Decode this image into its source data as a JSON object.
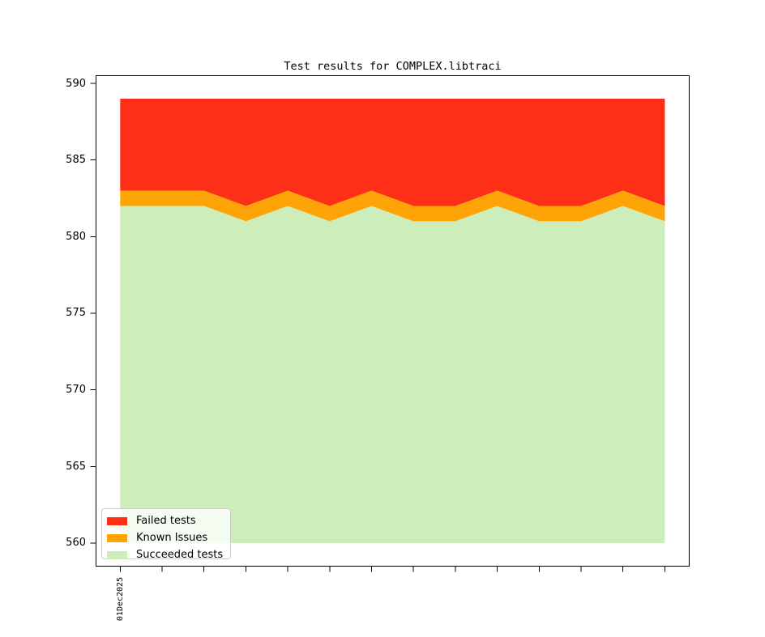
{
  "chart_data": {
    "type": "area",
    "stacked": true,
    "title": "Test results for COMPLEX.libtraci",
    "x_tick_labels": [
      "01Dec2025",
      "",
      "",
      "",
      "",
      "",
      "",
      "",
      "",
      "",
      "",
      "",
      "",
      ""
    ],
    "y_ticks": [
      560,
      565,
      570,
      575,
      580,
      585,
      590
    ],
    "ylim": [
      558.5,
      590.5
    ],
    "baseline_value": 560,
    "grid": false,
    "axis_color": "#000000",
    "series": [
      {
        "name": "Succeeded tests",
        "color": "#cdeebb",
        "values": [
          582,
          582,
          582,
          581,
          582,
          581,
          582,
          581,
          581,
          582,
          581,
          581,
          582,
          581
        ]
      },
      {
        "name": "Known Issues",
        "color": "#ffa406",
        "values": [
          1,
          1,
          1,
          1,
          1,
          1,
          1,
          1,
          1,
          1,
          1,
          1,
          1,
          1
        ]
      },
      {
        "name": "Failed tests",
        "color": "#fe2f17",
        "values": [
          6,
          6,
          6,
          7,
          6,
          7,
          6,
          7,
          7,
          6,
          7,
          7,
          6,
          7
        ]
      }
    ],
    "totals_per_point": [
      589,
      589,
      589,
      589,
      589,
      589,
      589,
      589,
      589,
      589,
      589,
      589,
      589,
      589
    ],
    "legend": {
      "position": "lower left",
      "entries": [
        {
          "label": "Failed tests",
          "color": "#fe2f17"
        },
        {
          "label": "Known Issues",
          "color": "#ffa406"
        },
        {
          "label": "Succeeded tests",
          "color": "#cdeebb"
        }
      ]
    }
  }
}
